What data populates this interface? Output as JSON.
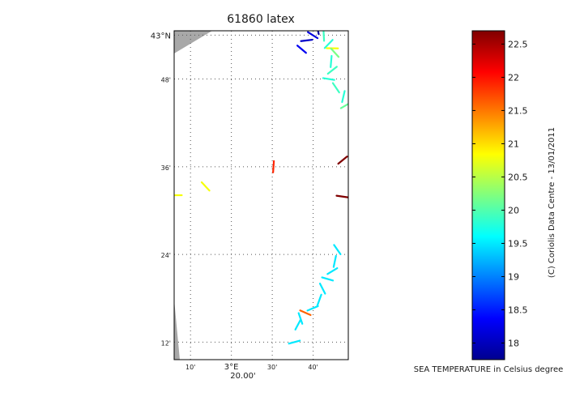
{
  "title": "61860 latex",
  "map": {
    "lon_range": [
      3.1,
      3.81
    ],
    "lat_range": [
      42.16,
      42.91
    ],
    "lat_ticks": [
      {
        "lat": 42.9,
        "label": "43°N"
      },
      {
        "lat": 42.8,
        "label": "48'"
      },
      {
        "lat": 42.6,
        "label": "36'"
      },
      {
        "lat": 42.4,
        "label": "24'"
      },
      {
        "lat": 42.2,
        "label": "12'"
      }
    ],
    "lon_ticks": [
      {
        "lon": 3.1667,
        "label": "10'"
      },
      {
        "lon": 3.3333,
        "label": "3°E"
      },
      {
        "lon": 3.5,
        "label": "30'"
      },
      {
        "lon": 3.6667,
        "label": "40'"
      }
    ],
    "lon_sublabel": "20.00'",
    "grid": true,
    "land_color": "#a8a8a8"
  },
  "colorbar": {
    "min": 17.75,
    "max": 22.7,
    "ticks": [
      "22.5",
      "22",
      "21.5",
      "21",
      "20.5",
      "20",
      "19.5",
      "19",
      "18.5",
      "18"
    ],
    "label": "SEA TEMPERATURE in Celsius degree",
    "credit": "(C) Coriolis Data Centre - 13/01/2011",
    "colormap": "jet"
  },
  "chart_data": {
    "type": "scatter",
    "title": "61860 latex",
    "xlabel": "",
    "ylabel": "",
    "xlim": [
      3.1,
      3.81
    ],
    "ylim": [
      42.16,
      42.91
    ],
    "value_label": "SEA TEMPERATURE in Celsius degree",
    "points": [
      {
        "lon": 3.108,
        "lat": 42.535,
        "temp": 20.8
      },
      {
        "lon": 3.228,
        "lat": 42.555,
        "temp": 20.8
      },
      {
        "lon": 3.505,
        "lat": 42.6,
        "temp": 21.9
      },
      {
        "lon": 3.787,
        "lat": 42.615,
        "temp": 22.7
      },
      {
        "lon": 3.785,
        "lat": 42.532,
        "temp": 22.7
      },
      {
        "lon": 3.765,
        "lat": 42.411,
        "temp": 19.5
      },
      {
        "lon": 3.755,
        "lat": 42.384,
        "temp": 19.5
      },
      {
        "lon": 3.745,
        "lat": 42.362,
        "temp": 19.5
      },
      {
        "lon": 3.725,
        "lat": 42.344,
        "temp": 19.5
      },
      {
        "lon": 3.705,
        "lat": 42.322,
        "temp": 19.5
      },
      {
        "lon": 3.692,
        "lat": 42.296,
        "temp": 19.5
      },
      {
        "lon": 3.665,
        "lat": 42.277,
        "temp": 19.5
      },
      {
        "lon": 3.635,
        "lat": 42.267,
        "temp": 21.6
      },
      {
        "lon": 3.615,
        "lat": 42.254,
        "temp": 19.5
      },
      {
        "lon": 3.605,
        "lat": 42.24,
        "temp": 19.5
      },
      {
        "lon": 3.59,
        "lat": 42.2,
        "temp": 19.5
      },
      {
        "lon": 3.665,
        "lat": 42.9,
        "temp": 18.2
      },
      {
        "lon": 3.685,
        "lat": 42.915,
        "temp": 17.9
      },
      {
        "lon": 3.7,
        "lat": 42.92,
        "temp": 17.9
      },
      {
        "lon": 3.64,
        "lat": 42.888,
        "temp": 18.1
      },
      {
        "lon": 3.62,
        "lat": 42.868,
        "temp": 18.3
      },
      {
        "lon": 3.71,
        "lat": 42.9,
        "temp": 19.9
      },
      {
        "lon": 3.73,
        "lat": 42.88,
        "temp": 19.8
      },
      {
        "lon": 3.745,
        "lat": 42.87,
        "temp": 20.8
      },
      {
        "lon": 3.755,
        "lat": 42.86,
        "temp": 20.2
      },
      {
        "lon": 3.74,
        "lat": 42.84,
        "temp": 19.8
      },
      {
        "lon": 3.745,
        "lat": 42.82,
        "temp": 19.9
      },
      {
        "lon": 3.73,
        "lat": 42.8,
        "temp": 19.8
      },
      {
        "lon": 3.76,
        "lat": 42.78,
        "temp": 19.9
      },
      {
        "lon": 3.79,
        "lat": 42.76,
        "temp": 19.8
      },
      {
        "lon": 3.8,
        "lat": 42.74,
        "temp": 20.1
      }
    ]
  }
}
